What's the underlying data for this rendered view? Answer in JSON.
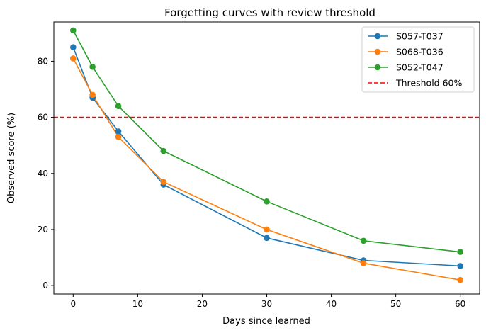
{
  "chart_data": {
    "type": "line",
    "title": "Forgetting curves with review threshold",
    "xlabel": "Days since learned",
    "ylabel": "Observed score (%)",
    "x": [
      0,
      3,
      7,
      14,
      30,
      45,
      60
    ],
    "xlim": [
      -3,
      63
    ],
    "ylim": [
      -3,
      94
    ],
    "xticks": [
      0,
      10,
      20,
      30,
      40,
      50,
      60
    ],
    "yticks": [
      0,
      20,
      40,
      60,
      80
    ],
    "grid": false,
    "legend_position": "top-right",
    "series": [
      {
        "name": "S057-T037",
        "color": "#1f77b4",
        "values": [
          85,
          67,
          55,
          36,
          17,
          9,
          7
        ]
      },
      {
        "name": "S068-T036",
        "color": "#ff7f0e",
        "values": [
          81,
          68,
          53,
          37,
          20,
          8,
          2
        ]
      },
      {
        "name": "S052-T047",
        "color": "#2ca02c",
        "values": [
          91,
          78,
          64,
          48,
          30,
          16,
          12
        ]
      }
    ],
    "threshold": {
      "name": "Threshold 60%",
      "value": 60,
      "color": "#ff0000",
      "style": "dashed"
    }
  }
}
